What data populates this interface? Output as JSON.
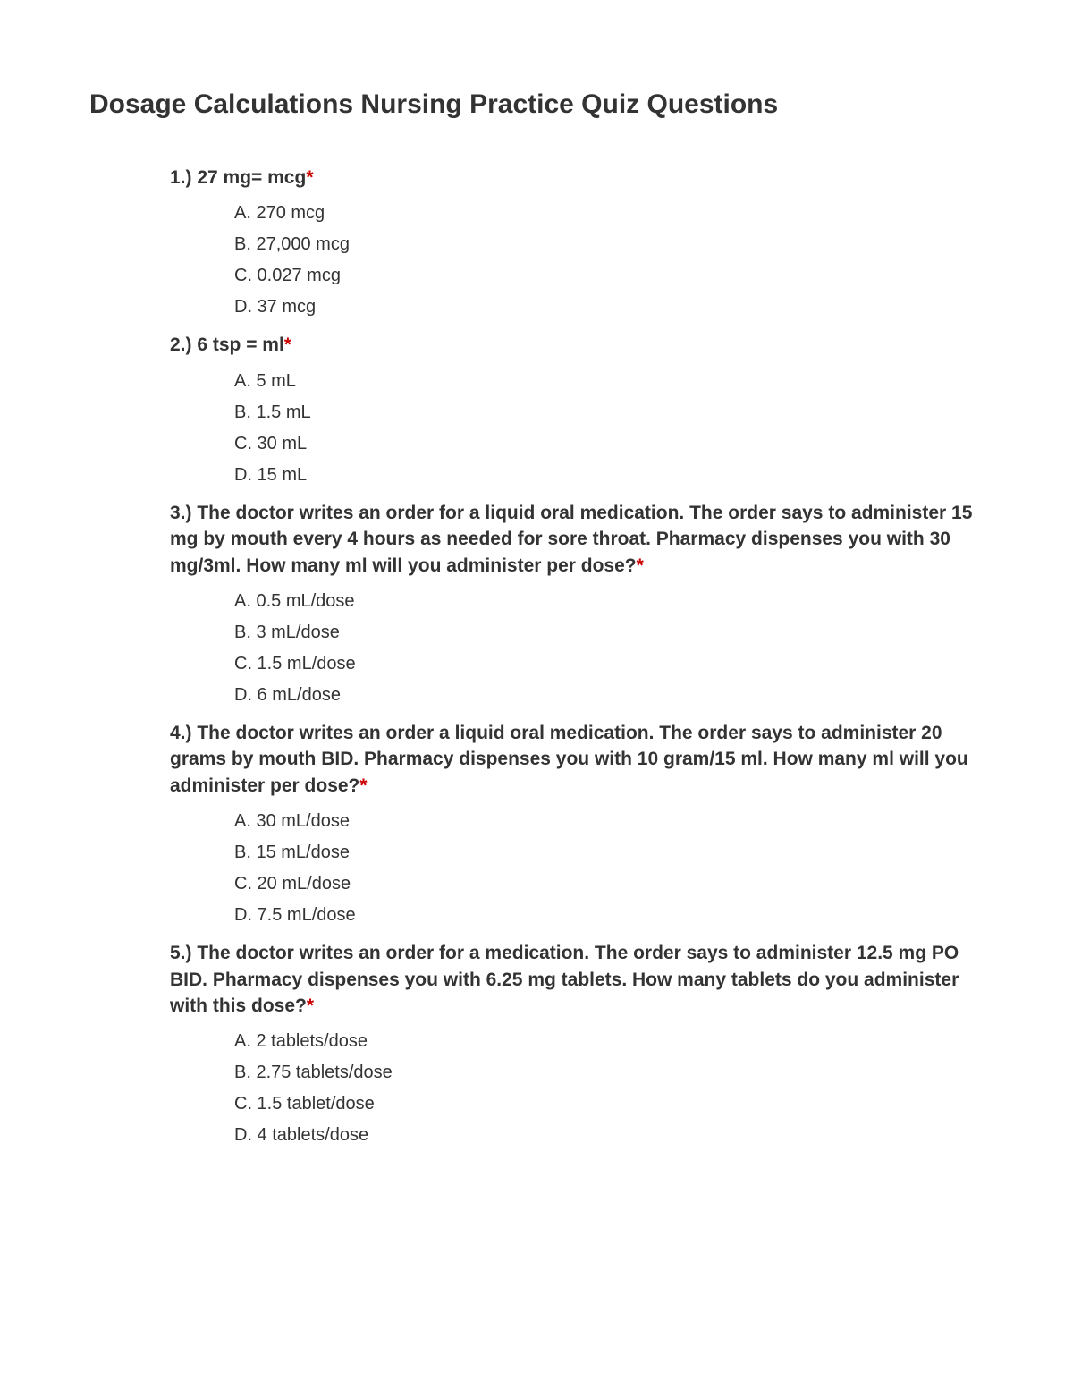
{
  "title": "Dosage Calculations Nursing Practice Quiz Questions",
  "asterisk": "*",
  "questions": [
    {
      "number": "1.)",
      "text": "27 mg= mcg",
      "options": [
        "A. 270 mcg",
        "B. 27,000 mcg",
        "C. 0.027 mcg",
        "D. 37 mcg"
      ]
    },
    {
      "number": "2.)",
      "text": "6 tsp = ml",
      "options": [
        "A. 5 mL",
        "B. 1.5 mL",
        "C. 30 mL",
        "D. 15 mL"
      ]
    },
    {
      "number": "3.)",
      "text": "The doctor writes an order for a liquid oral medication. The order says to administer 15 mg by mouth every 4 hours as needed for sore throat. Pharmacy dispenses you with 30 mg/3ml. How many ml will you administer per dose?",
      "options": [
        "A. 0.5 mL/dose",
        "B. 3 mL/dose",
        "C. 1.5 mL/dose",
        "D. 6 mL/dose"
      ]
    },
    {
      "number": "4.)",
      "text": "The doctor writes an order a liquid oral medication. The order says to administer 20 grams by mouth BID. Pharmacy dispenses you with 10 gram/15 ml. How many ml will you administer per dose?",
      "options": [
        "A. 30 mL/dose",
        "B. 15 mL/dose",
        "C. 20 mL/dose",
        "D. 7.5 mL/dose"
      ]
    },
    {
      "number": "5.)",
      "text": "The doctor writes an order for a medication. The order says to administer 12.5 mg PO BID. Pharmacy dispenses you with 6.25 mg tablets. How many tablets do you administer with this dose?",
      "options": [
        "A. 2 tablets/dose",
        "B. 2.75 tablets/dose",
        "C. 1.5 tablet/dose",
        "D. 4 tablets/dose"
      ]
    }
  ]
}
